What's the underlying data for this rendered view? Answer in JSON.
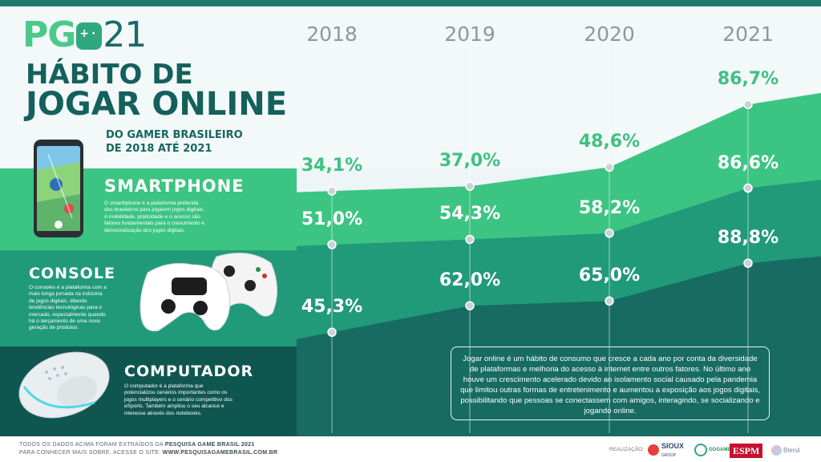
{
  "colors": {
    "smartphone_band": "#3cc483",
    "console_band": "#219a7a",
    "computer_band": "#176b62",
    "bottom_band": "#105650",
    "accent_green": "#3ec182",
    "dark_teal": "#14605c"
  },
  "logo": {
    "prefix": "PG",
    "suffix": "21"
  },
  "title": {
    "line1": "HÁBITO DE",
    "line2": "JOGAR ONLINE"
  },
  "subtitle": {
    "line1": "DO GAMER BRASILEIRO",
    "line2": "DE 2018 ATÉ 2021"
  },
  "segments": [
    {
      "name": "SMARTPHONE",
      "icon": "smartphone-icon",
      "desc": [
        "O smarthphone é a plataforma preferida",
        "dos brasileiros para jogarem jogos digitais.",
        "A mobilidade, praticidade e o acesso são",
        "fatores fundamentais para o crescimento e",
        "democratização dos jogos digitais."
      ]
    },
    {
      "name": "CONSOLE",
      "icon": "gamepad-icon",
      "desc": [
        "O consoles é a plataforma com a",
        "mais longa jornada na indústria",
        "de jogos digitais, ditando",
        "tendências tecnológicas para o",
        "mercado, especialmente quando",
        "há o lançamento de uma nova",
        "geração de produtos."
      ]
    },
    {
      "name": "COMPUTADOR",
      "icon": "mouse-icon",
      "desc": [
        "O computador é a plataforma que",
        "potencializou cenários importantes como os",
        "jogos multiplayers e o cenário competitivo dos",
        "eSports. Também ampliou o seu alcance e",
        "interesse através dos notebooks."
      ]
    }
  ],
  "chart_data": {
    "type": "area",
    "x": [
      "2018",
      "2019",
      "2020",
      "2021"
    ],
    "series": [
      {
        "name": "SMARTPHONE",
        "values": [
          34.1,
          37.0,
          48.6,
          86.7
        ],
        "labels": [
          "34,1%",
          "37,0%",
          "48,6%",
          "86,7%"
        ]
      },
      {
        "name": "CONSOLE",
        "values": [
          51.0,
          54.3,
          58.2,
          86.6
        ],
        "labels": [
          "51,0%",
          "54,3%",
          "58,2%",
          "86,6%"
        ]
      },
      {
        "name": "COMPUTADOR",
        "values": [
          45.3,
          62.0,
          65.0,
          88.8
        ],
        "labels": [
          "45,3%",
          "62,0%",
          "65,0%",
          "88,8%"
        ]
      }
    ],
    "ylim": [
      0,
      100
    ],
    "grid": "vertical lines per year",
    "legend": "left"
  },
  "callout": "Jogar online é um hábito de consumo que cresce a cada ano por conta da diversidade de plataformas e melhoria do acesso à internet entre outros fatores. No último ano houve um crescimento acelerado devido ao isolamento social causado pela pandemia que limitou outras formas de entretenimento e aumentou a exposição aos jogos digitais, possibilitando que pessoas se conectassem com amigos, interagindo, se socializando e jogando online.",
  "footer": {
    "line1_prefix": "TODOS OS DADOS ACIMA FORAM EXTRAÍDOS DA ",
    "line1_bold": "PESQUISA GAME BRASIL 2021",
    "line2_prefix": "PARA CONHECER MAIS SOBRE, ACESSE O SITE: ",
    "line2_bold": "WWW.PESQUISAGAMEBRASIL.COM.BR",
    "realizacao": "REALIZAÇÃO:",
    "partners": [
      "SIOUX",
      "GROUP",
      "GOGAMERS",
      "ESPM",
      "Blend"
    ]
  }
}
